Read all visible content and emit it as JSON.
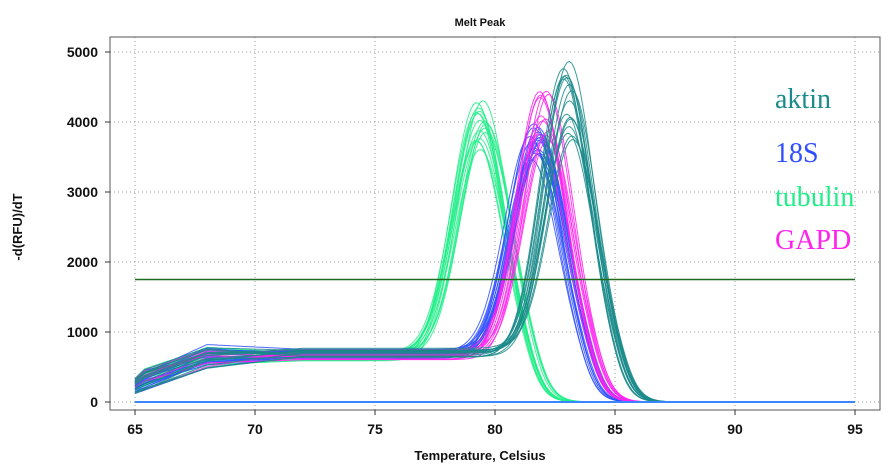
{
  "chart_data": {
    "type": "line",
    "title": "Melt Peak",
    "xlabel": "Temperature, Celsius",
    "ylabel": "-d(RFU)/dT",
    "xlim": [
      65,
      95
    ],
    "ylim": [
      0,
      5000
    ],
    "xticks": [
      65,
      70,
      75,
      80,
      85,
      90,
      95
    ],
    "yticks": [
      0,
      1000,
      2000,
      3000,
      4000,
      5000
    ],
    "grid": true,
    "legend_position": "right",
    "threshold": {
      "value": 1750,
      "color": "#1e6b1e"
    },
    "baseline": {
      "value": 0,
      "color": "#3a86ff"
    },
    "series": [
      {
        "name": "aktin",
        "color": "#1a8a8a",
        "peak_x": 83.0,
        "peak_y_range": [
          3700,
          4900
        ],
        "plateau": 700,
        "curves": 16
      },
      {
        "name": "18S",
        "color": "#2f4fff",
        "peak_x": 81.7,
        "peak_y_range": [
          3400,
          4050
        ],
        "plateau": 700,
        "curves": 18
      },
      {
        "name": "tubulin",
        "color": "#22ee88",
        "peak_x": 79.4,
        "peak_y_range": [
          3500,
          4450
        ],
        "plateau": 650,
        "curves": 16
      },
      {
        "name": "GAPD",
        "color": "#ff22ee",
        "peak_x": 82.0,
        "peak_y_range": [
          3600,
          4450
        ],
        "plateau": 680,
        "curves": 12
      }
    ]
  }
}
